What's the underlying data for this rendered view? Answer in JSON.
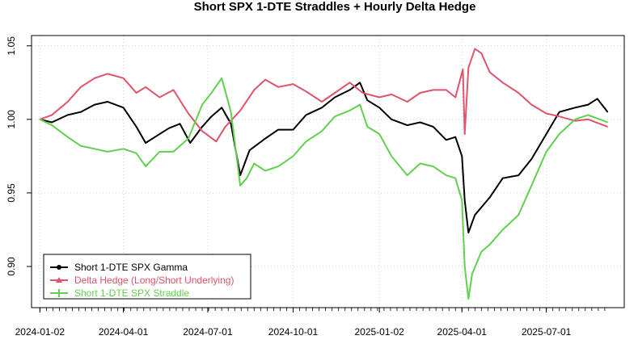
{
  "chart_data": {
    "type": "line",
    "title": "Short SPX 1-DTE Straddles + Hourly Delta Hedge",
    "xlabel": "",
    "ylabel": "",
    "x_range": [
      "2023-12-24",
      "2025-09-23"
    ],
    "ylim": [
      0.872,
      1.057
    ],
    "grid": true,
    "legend_position": "bottom-left",
    "x_ticks": [
      {
        "date": "2024-01-02",
        "label": "2024-01-02"
      },
      {
        "date": "2024-04-01",
        "label": "2024-04-01"
      },
      {
        "date": "2024-07-01",
        "label": "2024-07-01"
      },
      {
        "date": "2024-10-01",
        "label": "2024-10-01"
      },
      {
        "date": "2025-01-02",
        "label": "2025-01-02"
      },
      {
        "date": "2025-04-01",
        "label": "2025-04-01"
      },
      {
        "date": "2025-07-01",
        "label": "2025-07-01"
      }
    ],
    "y_ticks": [
      {
        "value": 0.9,
        "label": "0.90"
      },
      {
        "value": 0.95,
        "label": "0.95"
      },
      {
        "value": 1.0,
        "label": "1.00"
      },
      {
        "value": 1.05,
        "label": "1.05"
      }
    ],
    "series": [
      {
        "name": "Short 1-DTE SPX Gamma",
        "color": "#000000",
        "points": [
          [
            "2024-01-02",
            1.0
          ],
          [
            "2024-01-15",
            0.998
          ],
          [
            "2024-02-01",
            1.003
          ],
          [
            "2024-02-15",
            1.005
          ],
          [
            "2024-03-01",
            1.01
          ],
          [
            "2024-03-15",
            1.012
          ],
          [
            "2024-04-01",
            1.008
          ],
          [
            "2024-04-15",
            0.995
          ],
          [
            "2024-04-25",
            0.984
          ],
          [
            "2024-05-05",
            0.988
          ],
          [
            "2024-05-20",
            0.994
          ],
          [
            "2024-06-01",
            0.997
          ],
          [
            "2024-06-12",
            0.984
          ],
          [
            "2024-06-25",
            0.995
          ],
          [
            "2024-07-05",
            1.002
          ],
          [
            "2024-07-16",
            1.008
          ],
          [
            "2024-07-26",
            0.997
          ],
          [
            "2024-08-05",
            0.962
          ],
          [
            "2024-08-15",
            0.979
          ],
          [
            "2024-09-01",
            0.987
          ],
          [
            "2024-09-15",
            0.993
          ],
          [
            "2024-10-01",
            0.993
          ],
          [
            "2024-10-15",
            1.003
          ],
          [
            "2024-11-01",
            1.008
          ],
          [
            "2024-11-15",
            1.015
          ],
          [
            "2024-12-01",
            1.02
          ],
          [
            "2024-12-12",
            1.025
          ],
          [
            "2024-12-20",
            1.013
          ],
          [
            "2025-01-02",
            1.008
          ],
          [
            "2025-01-15",
            1.0
          ],
          [
            "2025-02-01",
            0.996
          ],
          [
            "2025-02-15",
            0.998
          ],
          [
            "2025-03-01",
            0.995
          ],
          [
            "2025-03-15",
            0.986
          ],
          [
            "2025-03-25",
            0.988
          ],
          [
            "2025-04-01",
            0.975
          ],
          [
            "2025-04-04",
            0.945
          ],
          [
            "2025-04-08",
            0.923
          ],
          [
            "2025-04-15",
            0.935
          ],
          [
            "2025-05-01",
            0.947
          ],
          [
            "2025-05-15",
            0.96
          ],
          [
            "2025-06-01",
            0.962
          ],
          [
            "2025-06-15",
            0.973
          ],
          [
            "2025-07-01",
            0.99
          ],
          [
            "2025-07-15",
            1.005
          ],
          [
            "2025-08-01",
            1.008
          ],
          [
            "2025-08-15",
            1.01
          ],
          [
            "2025-08-25",
            1.014
          ],
          [
            "2025-09-05",
            1.005
          ]
        ]
      },
      {
        "name": "Delta Hedge (Long/Short Underlying)",
        "color": "#df536b",
        "points": [
          [
            "2024-01-02",
            1.0
          ],
          [
            "2024-01-15",
            1.003
          ],
          [
            "2024-02-01",
            1.012
          ],
          [
            "2024-02-15",
            1.022
          ],
          [
            "2024-03-01",
            1.028
          ],
          [
            "2024-03-15",
            1.031
          ],
          [
            "2024-04-01",
            1.028
          ],
          [
            "2024-04-15",
            1.018
          ],
          [
            "2024-04-25",
            1.022
          ],
          [
            "2024-05-10",
            1.015
          ],
          [
            "2024-05-25",
            1.02
          ],
          [
            "2024-06-10",
            1.004
          ],
          [
            "2024-06-25",
            0.992
          ],
          [
            "2024-07-10",
            0.985
          ],
          [
            "2024-07-20",
            0.995
          ],
          [
            "2024-08-05",
            1.006
          ],
          [
            "2024-08-20",
            1.02
          ],
          [
            "2024-09-01",
            1.027
          ],
          [
            "2024-09-15",
            1.022
          ],
          [
            "2024-10-01",
            1.024
          ],
          [
            "2024-10-15",
            1.019
          ],
          [
            "2024-11-01",
            1.012
          ],
          [
            "2024-11-15",
            1.018
          ],
          [
            "2024-12-01",
            1.025
          ],
          [
            "2024-12-15",
            1.018
          ],
          [
            "2025-01-02",
            1.015
          ],
          [
            "2025-01-15",
            1.017
          ],
          [
            "2025-02-01",
            1.012
          ],
          [
            "2025-02-15",
            1.018
          ],
          [
            "2025-03-01",
            1.02
          ],
          [
            "2025-03-15",
            1.02
          ],
          [
            "2025-03-25",
            1.015
          ],
          [
            "2025-04-02",
            1.034
          ],
          [
            "2025-04-04",
            0.99
          ],
          [
            "2025-04-08",
            1.035
          ],
          [
            "2025-04-15",
            1.048
          ],
          [
            "2025-04-22",
            1.045
          ],
          [
            "2025-05-01",
            1.032
          ],
          [
            "2025-05-15",
            1.025
          ],
          [
            "2025-06-01",
            1.018
          ],
          [
            "2025-06-15",
            1.01
          ],
          [
            "2025-07-01",
            1.004
          ],
          [
            "2025-07-15",
            1.002
          ],
          [
            "2025-08-01",
            0.999
          ],
          [
            "2025-08-15",
            1.0
          ],
          [
            "2025-09-05",
            0.995
          ]
        ]
      },
      {
        "name": "Short 1-DTE SPX Straddle",
        "color": "#61d04f",
        "points": [
          [
            "2024-01-02",
            1.0
          ],
          [
            "2024-01-15",
            0.996
          ],
          [
            "2024-02-01",
            0.988
          ],
          [
            "2024-02-15",
            0.982
          ],
          [
            "2024-03-01",
            0.98
          ],
          [
            "2024-03-15",
            0.978
          ],
          [
            "2024-04-01",
            0.98
          ],
          [
            "2024-04-15",
            0.977
          ],
          [
            "2024-04-25",
            0.968
          ],
          [
            "2024-05-10",
            0.978
          ],
          [
            "2024-05-25",
            0.978
          ],
          [
            "2024-06-10",
            0.987
          ],
          [
            "2024-06-25",
            1.01
          ],
          [
            "2024-07-05",
            1.018
          ],
          [
            "2024-07-16",
            1.028
          ],
          [
            "2024-07-26",
            1.005
          ],
          [
            "2024-08-05",
            0.955
          ],
          [
            "2024-08-12",
            0.96
          ],
          [
            "2024-08-20",
            0.97
          ],
          [
            "2024-09-01",
            0.965
          ],
          [
            "2024-09-15",
            0.968
          ],
          [
            "2024-10-01",
            0.975
          ],
          [
            "2024-10-15",
            0.985
          ],
          [
            "2024-11-01",
            0.992
          ],
          [
            "2024-11-15",
            1.002
          ],
          [
            "2024-12-01",
            1.006
          ],
          [
            "2024-12-12",
            1.01
          ],
          [
            "2024-12-20",
            0.995
          ],
          [
            "2025-01-02",
            0.99
          ],
          [
            "2025-01-15",
            0.975
          ],
          [
            "2025-02-01",
            0.962
          ],
          [
            "2025-02-15",
            0.97
          ],
          [
            "2025-03-01",
            0.968
          ],
          [
            "2025-03-15",
            0.962
          ],
          [
            "2025-03-25",
            0.96
          ],
          [
            "2025-04-01",
            0.945
          ],
          [
            "2025-04-04",
            0.9
          ],
          [
            "2025-04-08",
            0.878
          ],
          [
            "2025-04-12",
            0.895
          ],
          [
            "2025-04-22",
            0.91
          ],
          [
            "2025-05-01",
            0.915
          ],
          [
            "2025-05-15",
            0.925
          ],
          [
            "2025-06-01",
            0.935
          ],
          [
            "2025-06-15",
            0.955
          ],
          [
            "2025-07-01",
            0.978
          ],
          [
            "2025-07-15",
            0.99
          ],
          [
            "2025-08-01",
            1.0
          ],
          [
            "2025-08-15",
            1.003
          ],
          [
            "2025-09-05",
            0.998
          ]
        ]
      }
    ]
  }
}
